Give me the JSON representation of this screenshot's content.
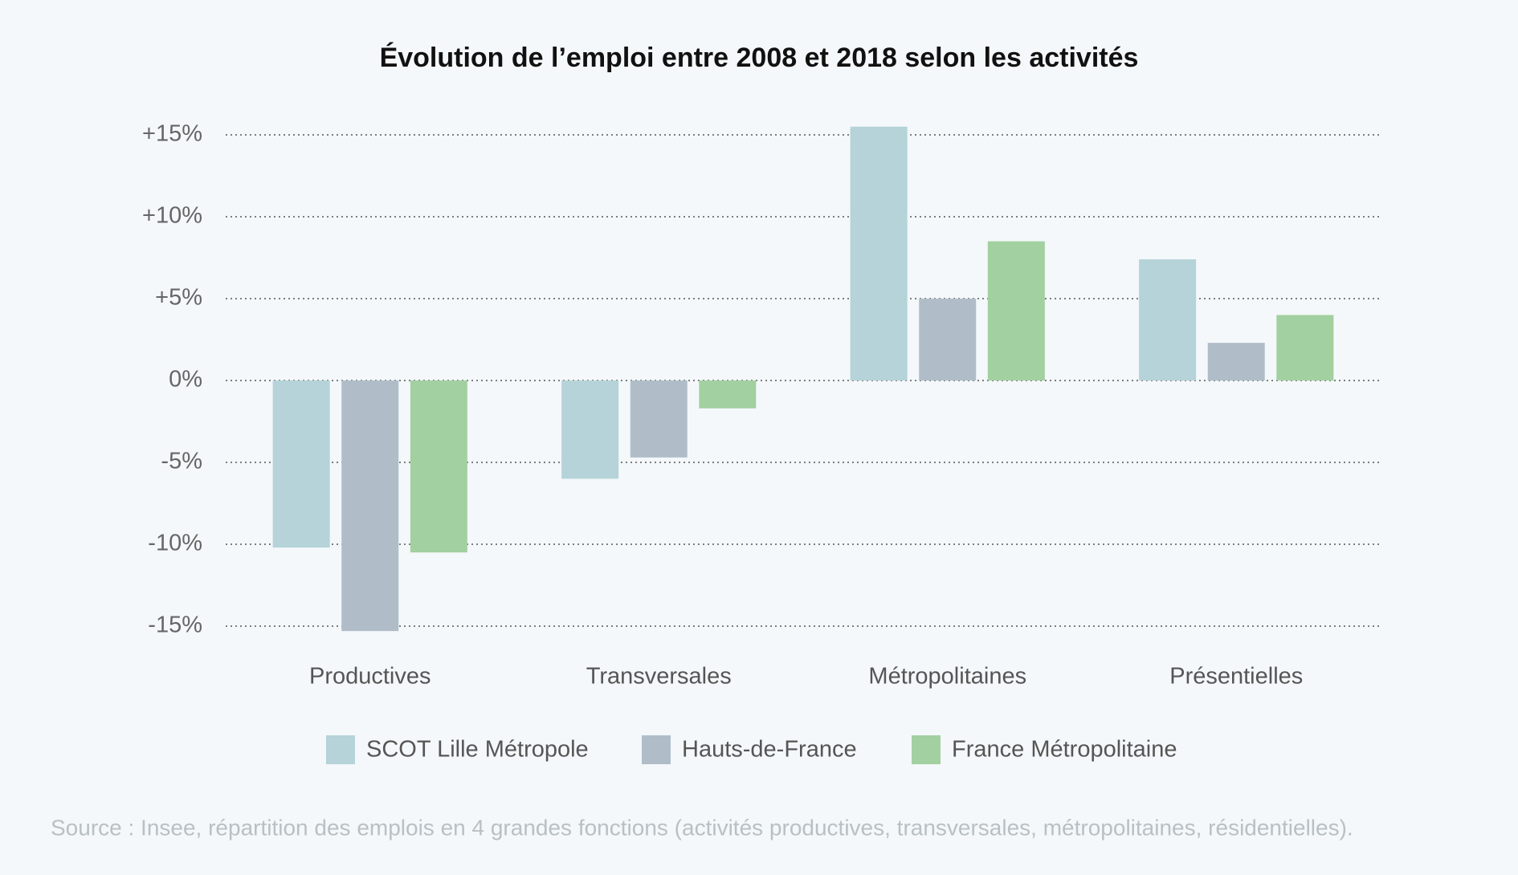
{
  "chart_data": {
    "type": "bar",
    "title": "Évolution de l’emploi entre 2008 et 2018 selon les activités",
    "categories": [
      "Productives",
      "Transversales",
      "Métropolitaines",
      "Présentielles"
    ],
    "series": [
      {
        "name": "SCOT Lille Métropole",
        "color": "#b5d3d8",
        "values": [
          -10.2,
          -6.0,
          15.5,
          7.4
        ]
      },
      {
        "name": "Hauts-de-France",
        "color": "#b0bdc9",
        "values": [
          -15.3,
          -4.7,
          5.0,
          2.3
        ]
      },
      {
        "name": "France Métropolitaine",
        "color": "#a2d0a0",
        "values": [
          -10.5,
          -1.7,
          8.5,
          4.0
        ]
      }
    ],
    "ylim": [
      -16,
      16
    ],
    "yticks": [
      {
        "value": -15,
        "label": "-15%"
      },
      {
        "value": -10,
        "label": "-10%"
      },
      {
        "value": -5,
        "label": "-5%"
      },
      {
        "value": 0,
        "label": "0%"
      },
      {
        "value": 5,
        "label": "+5%"
      },
      {
        "value": 10,
        "label": "+10%"
      },
      {
        "value": 15,
        "label": "+15%"
      }
    ],
    "grid": true,
    "legend": "bottom",
    "source": "Source : Insee, répartition des emplois en 4 grandes fonctions (activités productives, transversales, métropolitaines, résidentielles)."
  }
}
